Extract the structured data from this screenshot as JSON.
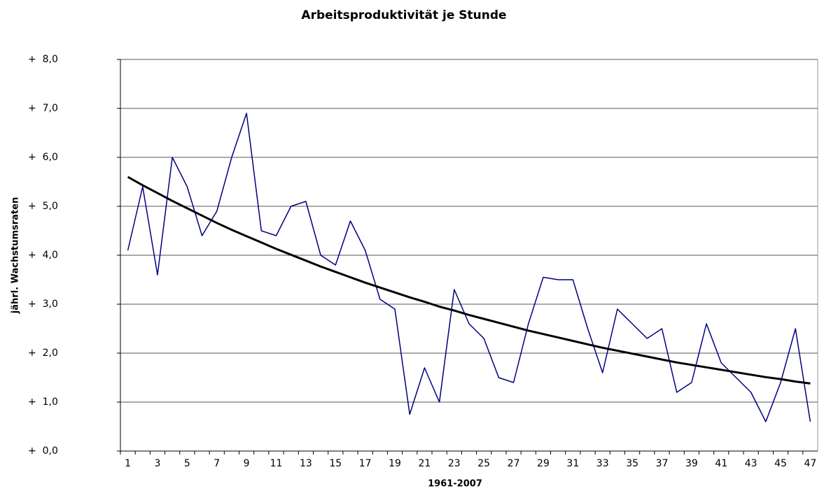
{
  "chart_data": {
    "type": "line",
    "title": "Arbeitsproduktivität je Stunde",
    "x_label": "1961-2007",
    "y_label": "jährl. Wachstumsraten",
    "categories": [
      "1",
      null,
      "3",
      null,
      "5",
      null,
      "7",
      null,
      "9",
      null,
      "11",
      null,
      "13",
      null,
      "15",
      null,
      "17",
      null,
      "19",
      null,
      "21",
      null,
      "23",
      null,
      "25",
      null,
      "27",
      null,
      "29",
      null,
      "31",
      null,
      "33",
      null,
      "35",
      null,
      "37",
      null,
      "39",
      null,
      "41",
      null,
      "43",
      null,
      "45",
      null,
      "47"
    ],
    "series": [
      {
        "color": "#000080",
        "width": 1.5,
        "values": [
          4.1,
          5.4,
          3.6,
          6.0,
          5.4,
          4.4,
          4.9,
          6.0,
          6.9,
          4.5,
          4.4,
          5.0,
          5.1,
          4.0,
          3.8,
          4.7,
          4.1,
          3.1,
          2.9,
          0.75,
          1.7,
          1.0,
          3.3,
          2.6,
          2.3,
          1.5,
          1.4,
          2.6,
          3.55,
          3.5,
          3.5,
          2.5,
          1.6,
          2.9,
          2.6,
          2.3,
          2.5,
          1.2,
          1.4,
          2.6,
          1.8,
          1.5,
          1.2,
          0.6,
          1.4,
          2.5,
          0.6
        ]
      },
      {
        "color": "#000000",
        "width": 3,
        "values": [
          5.6,
          5.43,
          5.27,
          5.11,
          4.96,
          4.81,
          4.66,
          4.52,
          4.39,
          4.26,
          4.13,
          4.01,
          3.89,
          3.77,
          3.66,
          3.55,
          3.44,
          3.34,
          3.24,
          3.14,
          3.05,
          2.95,
          2.87,
          2.78,
          2.7,
          2.62,
          2.54,
          2.46,
          2.39,
          2.32,
          2.25,
          2.18,
          2.11,
          2.05,
          1.99,
          1.93,
          1.87,
          1.81,
          1.76,
          1.71,
          1.66,
          1.61,
          1.56,
          1.51,
          1.47,
          1.42,
          1.38
        ]
      }
    ],
    "ylim": [
      0,
      8
    ],
    "yticks": [
      {
        "value": 0,
        "label": "+  0,0"
      },
      {
        "value": 1,
        "label": "+  1,0"
      },
      {
        "value": 2,
        "label": "+  2,0"
      },
      {
        "value": 3,
        "label": "+  3,0"
      },
      {
        "value": 4,
        "label": "+  4,0"
      },
      {
        "value": 5,
        "label": "+  5,0"
      },
      {
        "value": 6,
        "label": "+  6,0"
      },
      {
        "value": 7,
        "label": "+  7,0"
      },
      {
        "value": 8,
        "label": "+  8,0"
      }
    ],
    "grid": true
  }
}
